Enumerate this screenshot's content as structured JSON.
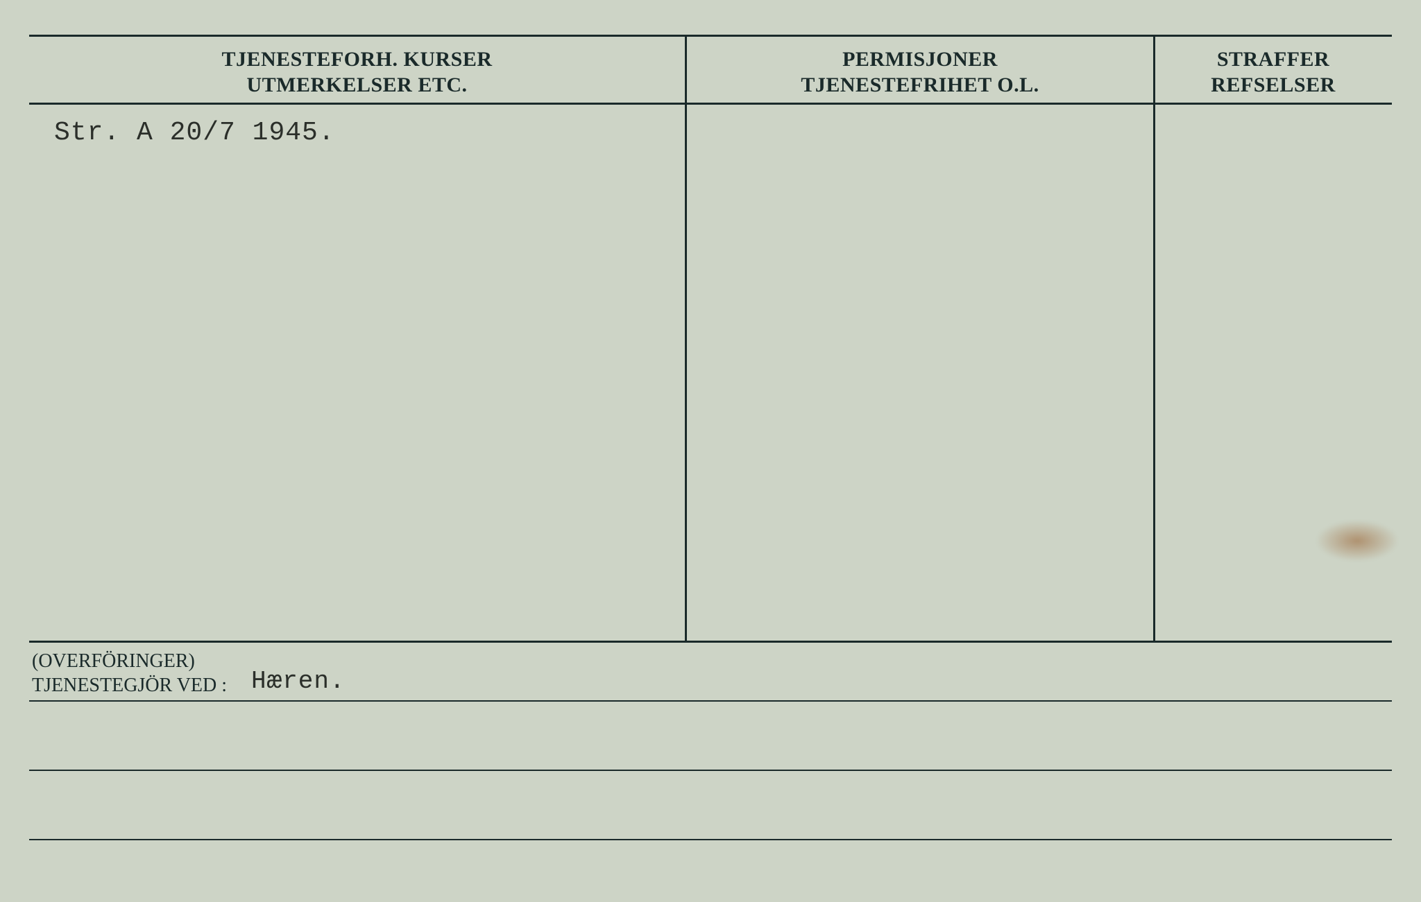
{
  "card": {
    "background_color": "#cdd4c6",
    "line_color": "#1a2a2a",
    "heading_fontsize": 30,
    "entry_fontsize": 38,
    "footer_label_fontsize": 28,
    "columns": {
      "col1": {
        "line1": "TJENESTEFORH. KURSER",
        "line2": "UTMERKELSER ETC."
      },
      "col2": {
        "line1": "PERMISJONER",
        "line2": "TJENESTEFRIHET O.L."
      },
      "col3": {
        "line1": "STRAFFER",
        "line2": "REFSELSER"
      }
    },
    "entry_text": "Str. A 20/7 1945.",
    "footer": {
      "label_line1": "(OVERFÖRINGER)",
      "label_line2": "TJENESTEGJÖR VED :",
      "value": "Hæren."
    }
  }
}
